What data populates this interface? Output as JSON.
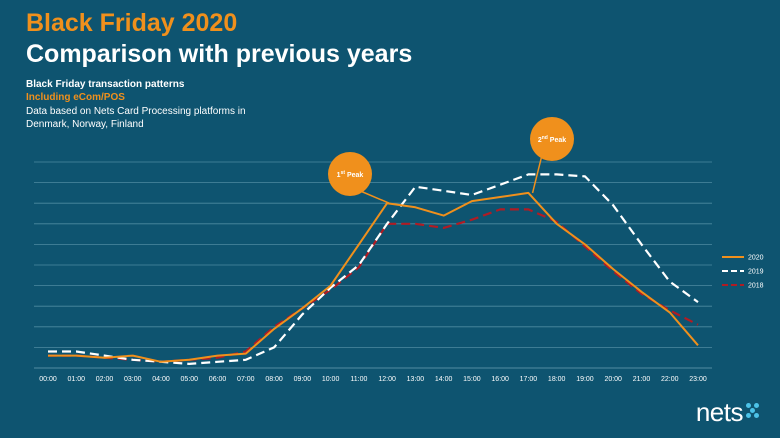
{
  "header": {
    "title_line1": "Black Friday 2020",
    "title_line2": "Comparison with previous years",
    "subtitle": "Black Friday transaction patterns",
    "subtitle_highlight": "Including eCom/POS",
    "description": "Data based on Nets Card Processing platforms in Denmark, Norway, Finland"
  },
  "colors": {
    "background": "#0e5470",
    "accent": "#f0901c",
    "s2019": "#ffffff",
    "s2018": "#b01c24",
    "grid": "#4d8aa0"
  },
  "logo": {
    "text": "nets",
    "icon": "nets-dots-icon"
  },
  "chart_data": {
    "type": "line",
    "categories": [
      "00:00",
      "01:00",
      "02:00",
      "03:00",
      "04:00",
      "05:00",
      "06:00",
      "07:00",
      "08:00",
      "09:00",
      "10:00",
      "11:00",
      "12:00",
      "13:00",
      "14:00",
      "15:00",
      "16:00",
      "17:00",
      "18:00",
      "19:00",
      "20:00",
      "21:00",
      "22:00",
      "23:00"
    ],
    "ylim": [
      0,
      10
    ],
    "grid": true,
    "legend_position": "right",
    "series": [
      {
        "name": "2020",
        "style": "solid",
        "color": "#f0901c",
        "values": [
          0.6,
          0.6,
          0.5,
          0.6,
          0.3,
          0.4,
          0.6,
          0.7,
          1.9,
          2.9,
          4.0,
          6.0,
          8.0,
          7.8,
          7.4,
          8.1,
          8.3,
          8.5,
          7.0,
          6.0,
          4.8,
          3.7,
          2.7,
          1.1
        ]
      },
      {
        "name": "2019",
        "style": "dashed",
        "color": "#ffffff",
        "values": [
          0.8,
          0.8,
          0.6,
          0.4,
          0.3,
          0.2,
          0.3,
          0.4,
          1.0,
          2.6,
          3.9,
          5.0,
          7.0,
          8.8,
          8.6,
          8.4,
          8.9,
          9.4,
          9.4,
          9.3,
          7.9,
          6.0,
          4.2,
          3.2
        ]
      },
      {
        "name": "2018",
        "style": "dashed",
        "color": "#b01c24",
        "values": [
          0.6,
          0.6,
          0.5,
          0.4,
          0.3,
          0.4,
          0.5,
          0.8,
          2.0,
          2.9,
          3.8,
          4.9,
          7.0,
          7.0,
          6.8,
          7.2,
          7.7,
          7.7,
          7.1,
          5.9,
          4.7,
          3.6,
          2.8,
          2.1
        ]
      }
    ],
    "annotations": [
      {
        "label": "1st Peak",
        "main": "1",
        "sup": "st",
        "rest": " Peak",
        "x_index": 12.5,
        "y": 8.0
      },
      {
        "label": "2nd Peak",
        "main": "2",
        "sup": "nd",
        "rest": " Peak",
        "x_index": 17.5,
        "y": 8.5
      }
    ]
  }
}
